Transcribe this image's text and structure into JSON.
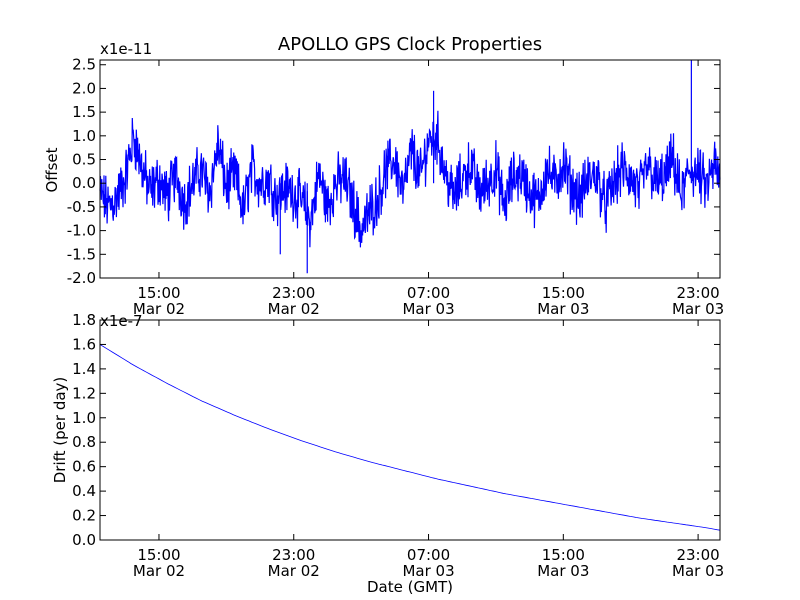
{
  "chart_data": [
    {
      "type": "line",
      "title": "APOLLO GPS Clock Properties",
      "ylabel": "Offset",
      "xlabel": "",
      "y_multiplier": "x1e-11",
      "ylim": [
        -2.0,
        2.6
      ],
      "yticks": [
        "-2.0",
        "-1.5",
        "-1.0",
        "-0.5",
        "0.0",
        "0.5",
        "1.0",
        "1.5",
        "2.0",
        "2.5"
      ],
      "ytick_values": [
        -2.0,
        -1.5,
        -1.0,
        -0.5,
        0.0,
        0.5,
        1.0,
        1.5,
        2.0,
        2.5
      ],
      "xlim_hours": [
        11.5,
        48.3
      ],
      "xticks": [
        {
          "hour": 15,
          "time": "15:00",
          "date": "Mar 02"
        },
        {
          "hour": 23,
          "time": "23:00",
          "date": "Mar 02"
        },
        {
          "hour": 31,
          "time": "07:00",
          "date": "Mar 03"
        },
        {
          "hour": 39,
          "time": "15:00",
          "date": "Mar 03"
        },
        {
          "hour": 47,
          "time": "23:00",
          "date": "Mar 03"
        }
      ],
      "series": [
        {
          "name": "Offset",
          "color": "#0000ff",
          "x_hours": [
            11.5,
            12.0,
            12.5,
            13.0,
            13.5,
            14.0,
            14.5,
            15.0,
            15.5,
            16.0,
            16.5,
            17.0,
            17.5,
            18.0,
            18.5,
            19.0,
            19.5,
            20.0,
            20.5,
            21.0,
            21.5,
            22.0,
            22.5,
            23.0,
            23.5,
            24.0,
            24.5,
            25.0,
            25.5,
            26.0,
            26.5,
            27.0,
            27.5,
            28.0,
            28.5,
            29.0,
            29.5,
            30.0,
            30.5,
            31.0,
            31.5,
            32.0,
            32.5,
            33.0,
            33.5,
            34.0,
            34.5,
            35.0,
            35.5,
            36.0,
            36.5,
            37.0,
            37.5,
            38.0,
            38.5,
            39.0,
            39.5,
            40.0,
            40.5,
            41.0,
            41.5,
            42.0,
            42.5,
            43.0,
            43.5,
            44.0,
            44.5,
            45.0,
            45.5,
            46.0,
            46.5,
            47.0,
            47.5,
            48.0,
            48.3
          ],
          "values": [
            -0.2,
            -0.5,
            -0.3,
            0.1,
            1.0,
            0.3,
            -0.2,
            0.1,
            -0.3,
            0.2,
            -0.4,
            0.0,
            0.3,
            -0.2,
            0.8,
            -0.1,
            0.2,
            -0.6,
            0.3,
            0.0,
            0.1,
            -0.3,
            -0.1,
            -0.2,
            -0.4,
            -0.8,
            0.2,
            -0.5,
            0.0,
            0.1,
            -0.4,
            -1.0,
            -0.6,
            -0.3,
            0.3,
            0.5,
            -0.2,
            0.7,
            0.1,
            0.9,
            1.0,
            0.2,
            -0.3,
            0.1,
            0.4,
            -0.2,
            0.0,
            0.3,
            -0.5,
            0.1,
            0.2,
            -0.2,
            -0.4,
            0.3,
            0.0,
            0.4,
            -0.1,
            -0.3,
            0.1,
            0.2,
            -0.5,
            0.0,
            0.3,
            0.1,
            -0.2,
            0.4,
            0.0,
            0.1,
            0.5,
            -0.3,
            0.3,
            0.2,
            -0.1,
            0.4,
            0.0
          ]
        }
      ]
    },
    {
      "type": "line",
      "title": "",
      "ylabel": "Drift (per day)",
      "xlabel": "Date (GMT)",
      "y_multiplier": "x1e-7",
      "ylim": [
        0.0,
        1.8
      ],
      "yticks": [
        "0.0",
        "0.2",
        "0.4",
        "0.6",
        "0.8",
        "1.0",
        "1.2",
        "1.4",
        "1.6",
        "1.8"
      ],
      "ytick_values": [
        0.0,
        0.2,
        0.4,
        0.6,
        0.8,
        1.0,
        1.2,
        1.4,
        1.6,
        1.8
      ],
      "xlim_hours": [
        11.5,
        48.3
      ],
      "xticks": [
        {
          "hour": 15,
          "time": "15:00",
          "date": "Mar 02"
        },
        {
          "hour": 23,
          "time": "23:00",
          "date": "Mar 02"
        },
        {
          "hour": 31,
          "time": "07:00",
          "date": "Mar 03"
        },
        {
          "hour": 39,
          "time": "15:00",
          "date": "Mar 03"
        },
        {
          "hour": 47,
          "time": "23:00",
          "date": "Mar 03"
        }
      ],
      "series": [
        {
          "name": "Drift",
          "color": "#0000ff",
          "x_hours": [
            11.5,
            13.5,
            15.5,
            17.5,
            19.5,
            21.5,
            23.5,
            25.5,
            27.5,
            29.5,
            31.5,
            33.5,
            35.5,
            37.5,
            39.5,
            41.5,
            43.5,
            45.5,
            47.5,
            48.3
          ],
          "values": [
            1.6,
            1.43,
            1.28,
            1.14,
            1.02,
            0.91,
            0.81,
            0.72,
            0.64,
            0.57,
            0.5,
            0.44,
            0.38,
            0.33,
            0.28,
            0.23,
            0.18,
            0.14,
            0.1,
            0.08
          ]
        }
      ]
    }
  ]
}
